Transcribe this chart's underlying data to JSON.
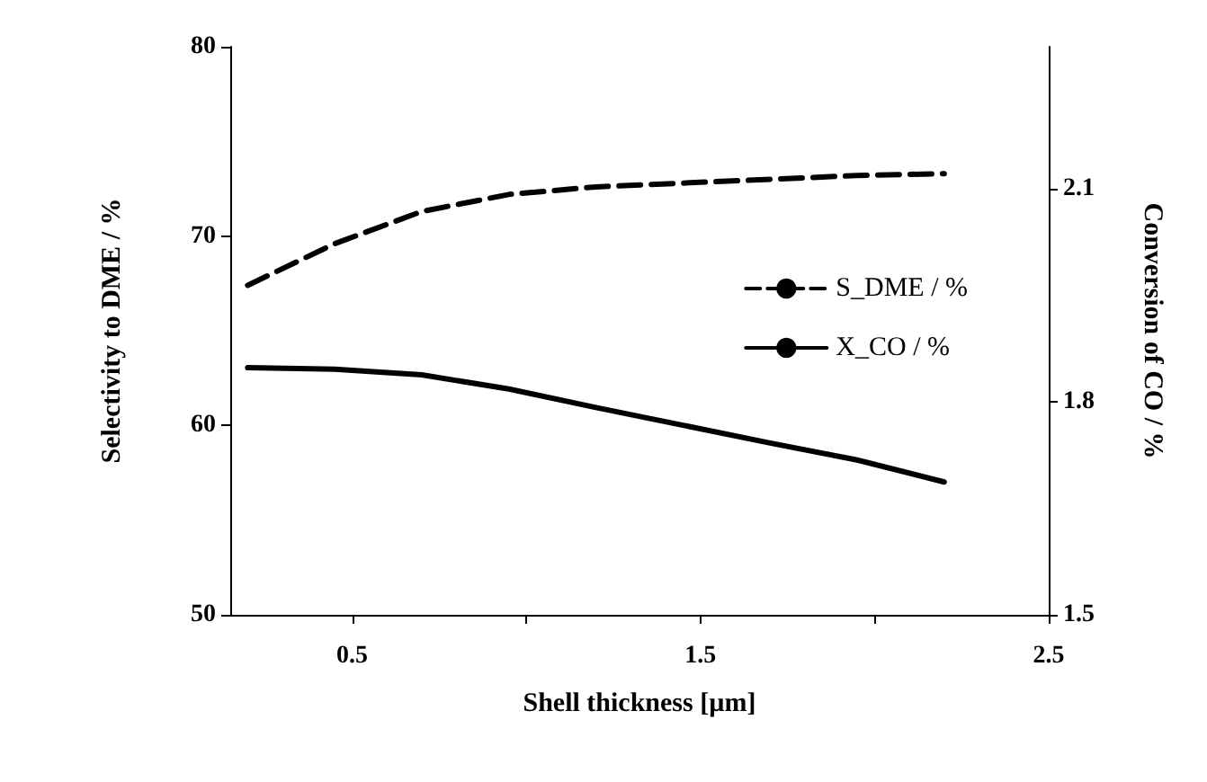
{
  "chart_data": {
    "type": "line",
    "xlabel": "Shell thickness [µm]",
    "ylabel": "Selectivity to DME / %",
    "y2label": "Conversion of CO / %",
    "x": [
      0.2,
      0.45,
      0.7,
      0.95,
      1.2,
      1.45,
      1.7,
      1.95,
      2.2
    ],
    "series": [
      {
        "name": "S_DME / %",
        "color": "#000000",
        "line_style": "dashed",
        "values": [
          67.4,
          69.6,
          71.3,
          72.2,
          72.6,
          72.8,
          73.0,
          73.2,
          73.3
        ]
      },
      {
        "name": "X_CO / %",
        "color": "#000000",
        "line_style": "solid",
        "axis": "y2",
        "values": [
          1.848,
          1.846,
          1.838,
          1.818,
          1.792,
          1.767,
          1.742,
          1.718,
          1.687
        ]
      }
    ],
    "xlim": [
      0.15,
      2.5
    ],
    "xticks": [
      0.5,
      {
        "value": 1.0,
        "label": null
      },
      1.5,
      {
        "value": 2.0,
        "label": null
      },
      2.5
    ],
    "ylim": [
      50,
      80
    ],
    "yticks": [
      50,
      60,
      70,
      80
    ],
    "y2lim": [
      1.5,
      2.3
    ],
    "y2ticks": [
      1.5,
      1.8,
      2.1
    ],
    "legend": "right",
    "grid": false,
    "marker": "none"
  }
}
